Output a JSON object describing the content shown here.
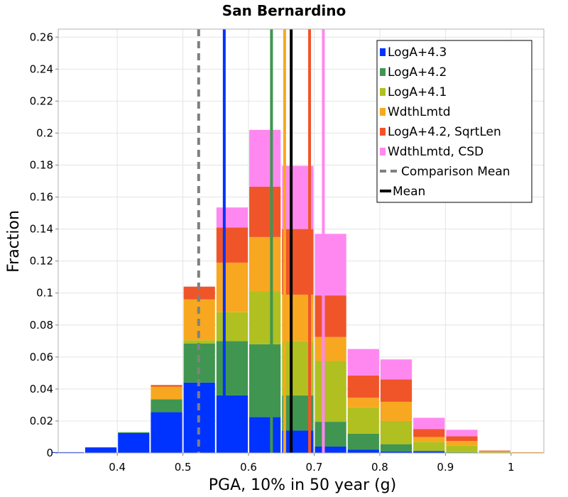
{
  "chart_data": {
    "type": "bar",
    "stacked": true,
    "title": "San Bernardino",
    "xlabel": "PGA, 10% in 50 year (g)",
    "ylabel": "Fraction",
    "xlim": [
      0.31,
      1.05
    ],
    "ylim": [
      0,
      0.265
    ],
    "xticks": [
      0.4,
      0.5,
      0.6,
      0.7,
      0.8,
      0.9,
      1.0
    ],
    "xtick_labels": [
      "0.4",
      "0.5",
      "0.6",
      "0.7",
      "0.8",
      "0.9",
      "1"
    ],
    "yticks": [
      0,
      0.02,
      0.04,
      0.06,
      0.08,
      0.1,
      0.12,
      0.14,
      0.16,
      0.18,
      0.2,
      0.22,
      0.24,
      0.26
    ],
    "ytick_labels": [
      "0",
      "0.02",
      "0.04",
      "0.06",
      "0.08",
      "0.1",
      "0.12",
      "0.14",
      "0.16",
      "0.18",
      "0.2",
      "0.22",
      "0.24",
      "0.26"
    ],
    "grid": true,
    "legend_position": "top-right",
    "bin_width": 0.05,
    "bin_centers": [
      0.325,
      0.375,
      0.425,
      0.475,
      0.525,
      0.575,
      0.625,
      0.675,
      0.725,
      0.775,
      0.825,
      0.875,
      0.925,
      0.975,
      1.025
    ],
    "series": [
      {
        "name": "LogA+4.3",
        "color": "#0033ff",
        "values": [
          0.0005,
          0.0035,
          0.0125,
          0.0255,
          0.044,
          0.036,
          0.0225,
          0.014,
          0.004,
          0.002,
          0.001,
          0.001,
          0.0,
          0.0,
          0.0
        ]
      },
      {
        "name": "LogA+4.2",
        "color": "#409650",
        "values": [
          0.0,
          0.0,
          0.0005,
          0.008,
          0.0245,
          0.034,
          0.0455,
          0.022,
          0.0155,
          0.01,
          0.0045,
          0.0005,
          0.0005,
          0.0,
          0.0
        ]
      },
      {
        "name": "LogA+4.1",
        "color": "#b0c020",
        "values": [
          0.0,
          0.0,
          0.0,
          0.0,
          0.002,
          0.018,
          0.033,
          0.034,
          0.038,
          0.0165,
          0.0145,
          0.0055,
          0.004,
          0.0005,
          0.0
        ]
      },
      {
        "name": "WdthLmtd",
        "color": "#f7a820",
        "values": [
          0.0,
          0.0,
          0.0,
          0.008,
          0.0255,
          0.031,
          0.034,
          0.029,
          0.015,
          0.006,
          0.012,
          0.003,
          0.003,
          0.0005,
          0.0005
        ]
      },
      {
        "name": "LogA+4.2, SqrtLen",
        "color": "#f0552a",
        "values": [
          0.0,
          0.0,
          0.0,
          0.001,
          0.008,
          0.022,
          0.0315,
          0.041,
          0.026,
          0.014,
          0.014,
          0.005,
          0.003,
          0.0005,
          0.0
        ]
      },
      {
        "name": "WdthLmtd, CSD",
        "color": "#ff88f0",
        "values": [
          0.0,
          0.0,
          0.0,
          0.0,
          0.0,
          0.0125,
          0.0355,
          0.0395,
          0.0385,
          0.0165,
          0.0125,
          0.007,
          0.004,
          0.0,
          0.0
        ]
      }
    ],
    "vlines": [
      {
        "name": "LogA+4.3 mean",
        "x": 0.563,
        "color": "#0033ff"
      },
      {
        "name": "LogA+4.2 mean",
        "x": 0.635,
        "color": "#409650"
      },
      {
        "name": "WdthLmtd mean",
        "x": 0.655,
        "color": "#f7a820"
      },
      {
        "name": "LogA+4.2, SqrtLen mean",
        "x": 0.693,
        "color": "#f0552a"
      },
      {
        "name": "WdthLmtd, CSD mean",
        "x": 0.714,
        "color": "#ff88f0"
      }
    ],
    "comparison_mean": {
      "label": "Comparison Mean",
      "x": 0.524,
      "color": "#808080",
      "style": "dashed"
    },
    "mean": {
      "label": "Mean",
      "x": 0.665,
      "color": "#000000",
      "style": "solid"
    }
  }
}
